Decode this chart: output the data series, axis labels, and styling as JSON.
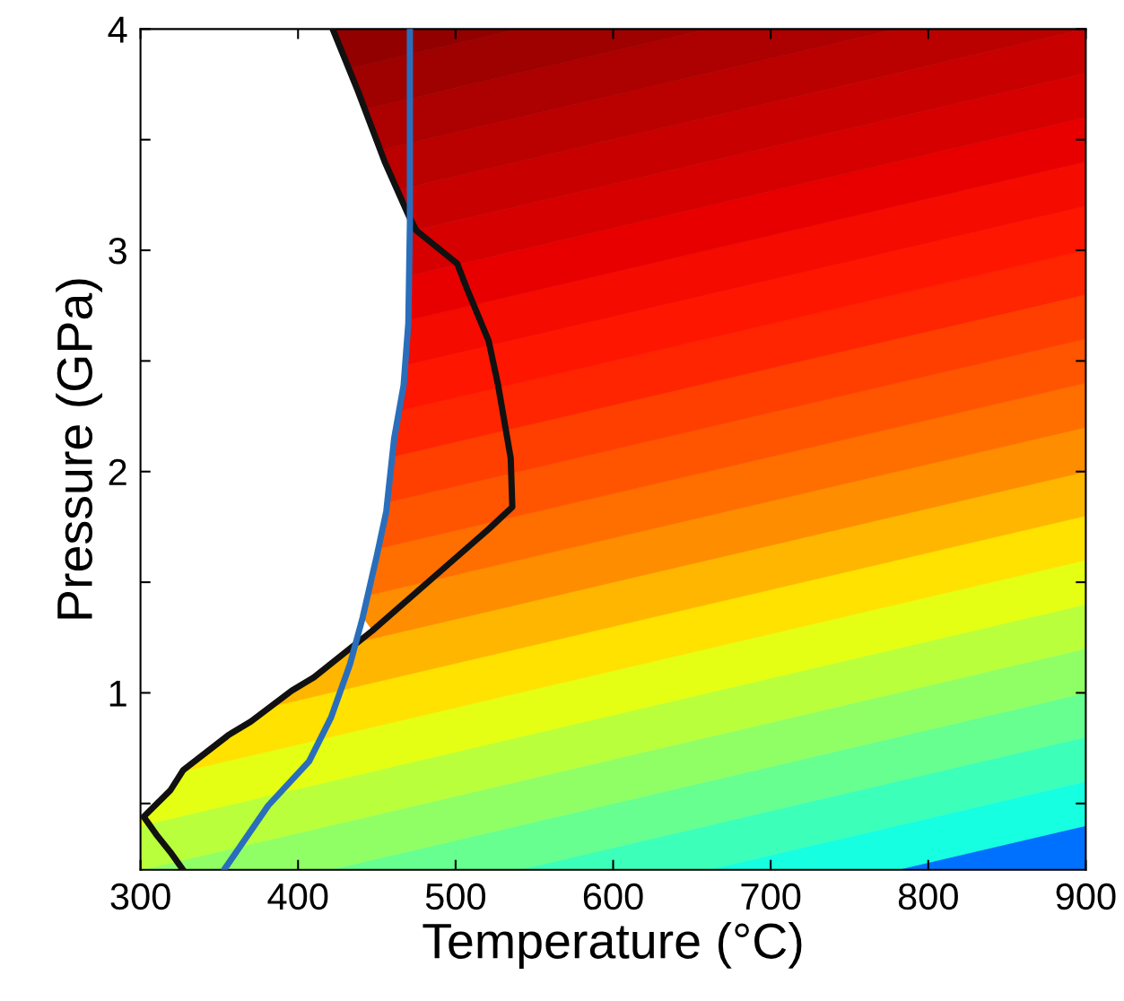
{
  "chart_data": {
    "type": "line",
    "xlabel": "Temperature (°C)",
    "ylabel": "Pressure (GPa)",
    "xlim": [
      300,
      900
    ],
    "ylim": [
      0.2,
      4
    ],
    "xticks": [
      300,
      400,
      500,
      600,
      700,
      800,
      900
    ],
    "yticks": [
      {
        "value": 0.5,
        "label": null
      },
      1,
      {
        "value": 1.5,
        "label": null
      },
      2,
      {
        "value": 2.5,
        "label": null
      },
      3,
      {
        "value": 3.5,
        "label": null
      },
      4
    ],
    "grid": false,
    "legend": false,
    "marker": "none",
    "line_style": "solid",
    "series": [
      {
        "color": "#111111",
        "x": [
          422,
          438,
          455,
          470,
          475,
          501,
          507,
          521,
          527,
          535,
          536,
          521,
          447,
          410,
          396,
          370,
          356,
          327,
          319,
          302,
          310,
          319,
          327
        ],
        "values": [
          4,
          3.72,
          3.4,
          3.16,
          3.09,
          2.94,
          2.83,
          2.59,
          2.39,
          2.06,
          1.84,
          1.74,
          1.28,
          1.07,
          1.01,
          0.87,
          0.81,
          0.65,
          0.56,
          0.44,
          0.36,
          0.28,
          0.2
        ]
      },
      {
        "color": "#2a6ebb",
        "x": [
          353,
          381,
          407,
          421,
          433,
          441,
          450,
          456,
          461,
          467,
          470,
          471,
          471
        ],
        "values": [
          0.2,
          0.49,
          0.69,
          0.89,
          1.13,
          1.34,
          1.62,
          1.82,
          2.15,
          2.39,
          2.67,
          3.12,
          4
        ]
      }
    ]
  }
}
